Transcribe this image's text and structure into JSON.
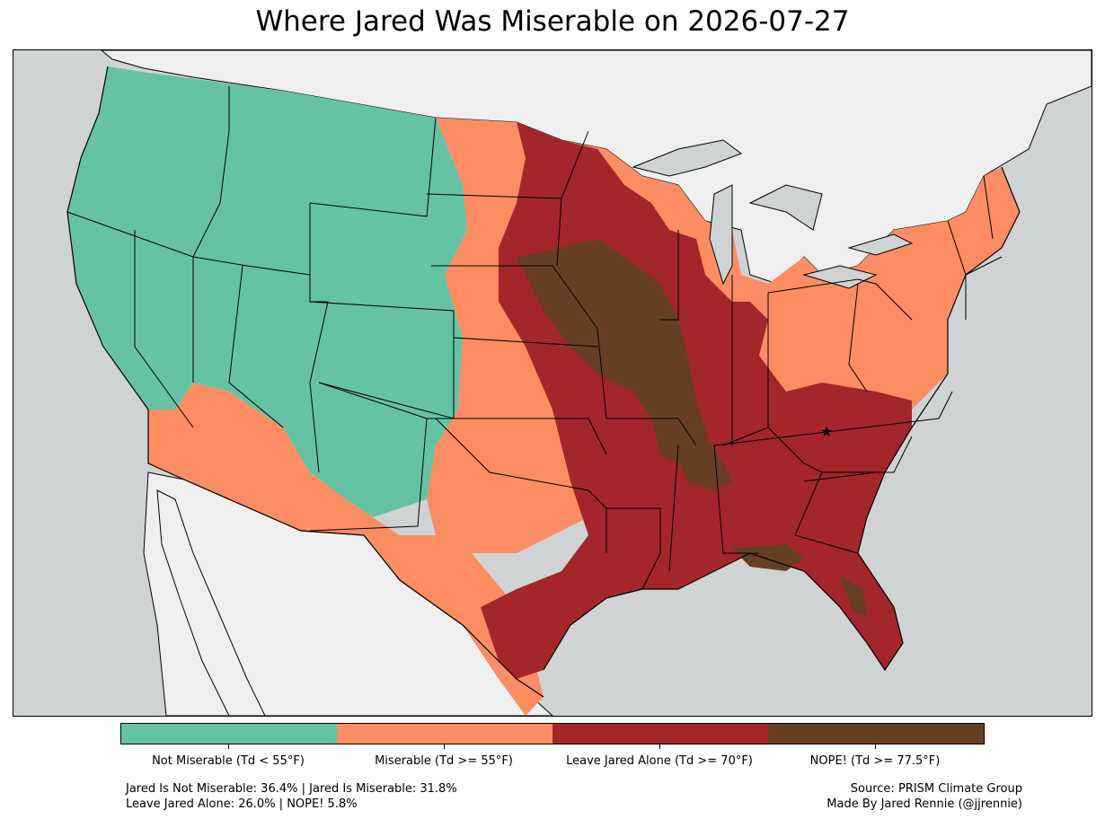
{
  "title": "Where Jared Was Miserable on 2026-07-27",
  "colors": {
    "ocean": "#d0d3d4",
    "land_outside": "#efefef",
    "not_miserable": "#66c2a5",
    "miserable": "#fc8d62",
    "leave_alone": "#a3262a",
    "nope": "#663f22",
    "lakes": "#d0d3d4"
  },
  "legend": [
    {
      "label": "Not Miserable (Td < 55°F)",
      "color": "#66c2a5"
    },
    {
      "label": "Miserable (Td >= 55°F)",
      "color": "#fc8d62"
    },
    {
      "label": "Leave Jared Alone (Td >= 70°F)",
      "color": "#a3262a"
    },
    {
      "label": "NOPE! (Td >= 77.5°F)",
      "color": "#663f22"
    }
  ],
  "stats": {
    "line1": "Jared Is Not Miserable: 36.4% | Jared Is Miserable: 31.8%",
    "line2": "Leave Jared Alone: 26.0% | NOPE! 5.8%"
  },
  "credits": {
    "line1": "Source: PRISM Climate Group",
    "line2": "Made By Jared Rennie (@jjrennie)"
  },
  "marker": {
    "icon": "star-icon"
  }
}
